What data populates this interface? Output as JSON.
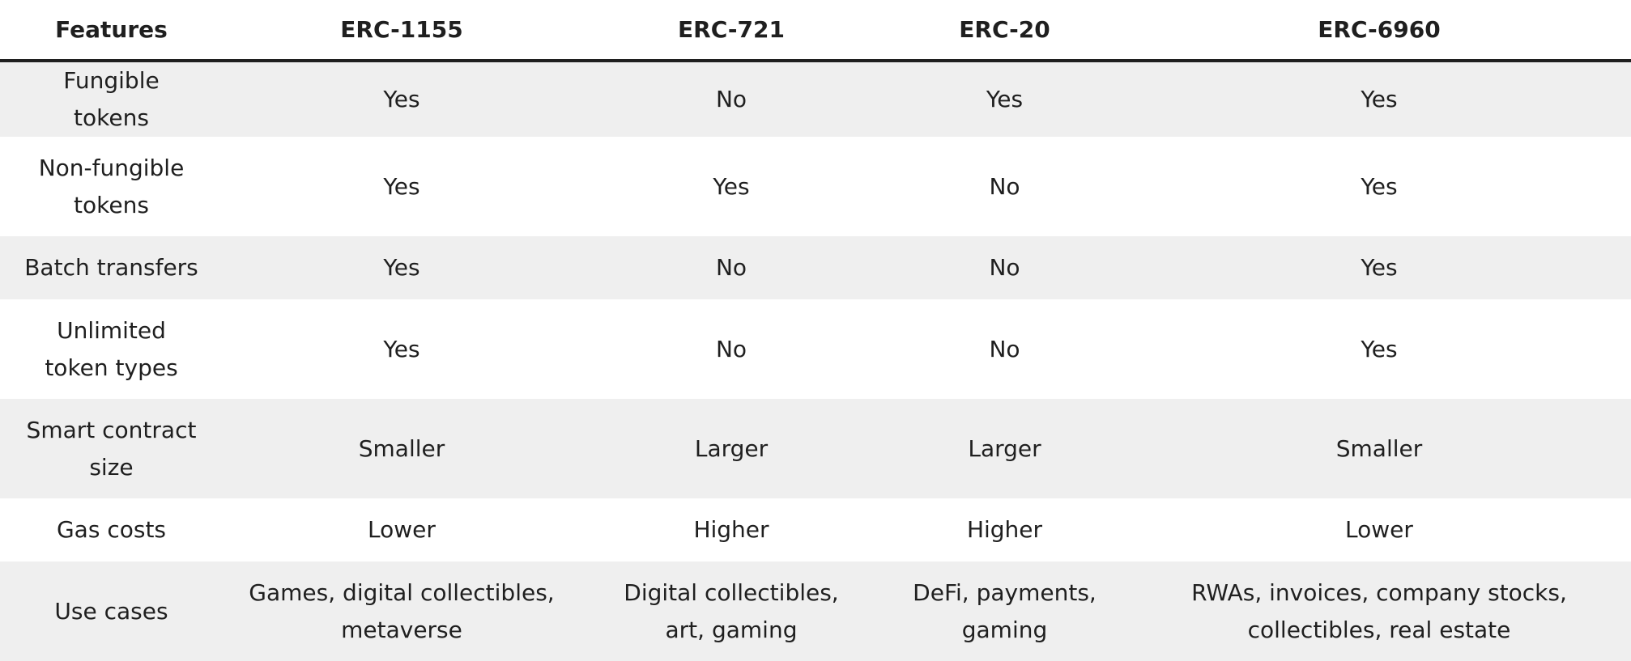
{
  "table": {
    "columns": [
      "Features",
      "ERC-1155",
      "ERC-721",
      "ERC-20",
      "ERC-6960"
    ],
    "rows": [
      [
        "Fungible tokens",
        "Yes",
        "No",
        "Yes",
        "Yes"
      ],
      [
        "Non-fungible tokens",
        "Yes",
        "Yes",
        "No",
        "Yes"
      ],
      [
        "Batch transfers",
        "Yes",
        "No",
        "No",
        "Yes"
      ],
      [
        "Unlimited token types",
        "Yes",
        "No",
        "No",
        "Yes"
      ],
      [
        "Smart contract size",
        "Smaller",
        "Larger",
        "Larger",
        "Smaller"
      ],
      [
        "Gas costs",
        "Lower",
        "Higher",
        "Higher",
        "Lower"
      ],
      [
        "Use cases",
        "Games, digital collectibles, metaverse",
        "Digital collectibles, art, gaming",
        "DeFi, payments, gaming",
        "RWAs, invoices, company stocks, collectibles, real estate"
      ]
    ]
  }
}
